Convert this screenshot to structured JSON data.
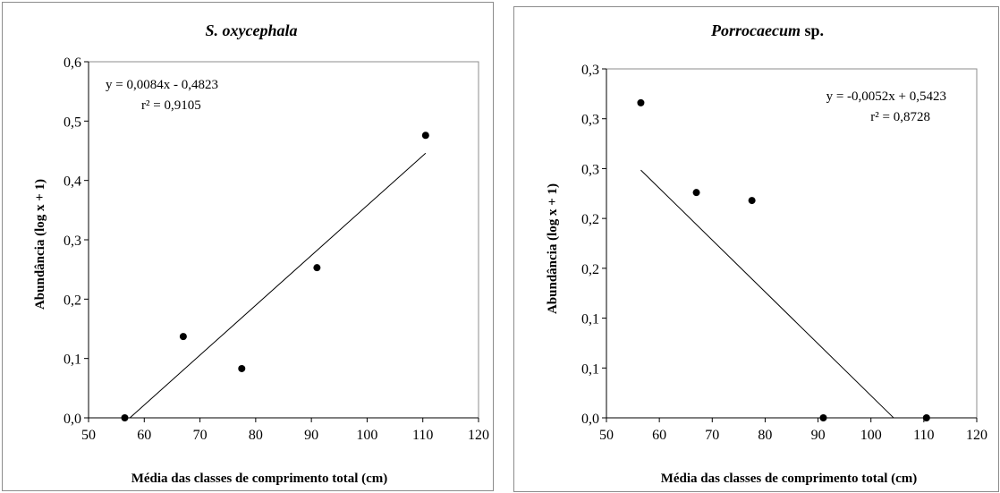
{
  "chart_data": [
    {
      "type": "scatter",
      "title": "S. oxycephala",
      "xlabel": "Média das classes de comprimento total (cm)",
      "ylabel": "Abundância (log x + 1)",
      "xlim": [
        50,
        120
      ],
      "ylim": [
        0,
        0.6
      ],
      "xticks": [
        50,
        60,
        70,
        80,
        90,
        100,
        110,
        120
      ],
      "xtick_labels": [
        "50",
        "60",
        "70",
        "80",
        "90",
        "100",
        "110",
        "120"
      ],
      "yticks": [
        0,
        0.1,
        0.2,
        0.3,
        0.4,
        0.5,
        0.6
      ],
      "ytick_labels": [
        "0,0",
        "0,1",
        "0,2",
        "0,3",
        "0,4",
        "0,5",
        "0,6"
      ],
      "grid": false,
      "x": [
        56.5,
        67,
        77.5,
        91,
        110.5
      ],
      "y": [
        0.0,
        0.137,
        0.083,
        0.253,
        0.476
      ],
      "trendline": {
        "slope": 0.0084,
        "intercept": -0.4823,
        "x_range": [
          57.4,
          110.5
        ]
      },
      "equation": "y = 0,0084x - 0,4823",
      "r2": "r² = 0,9105"
    },
    {
      "type": "scatter",
      "title": "Porrocaecum",
      "title_suffix": " sp.",
      "xlabel": "Média das classes de comprimento total (cm)",
      "ylabel": "Abundância (log x + 1)",
      "xlim": [
        50,
        120
      ],
      "ylim": [
        0,
        0.35
      ],
      "xticks": [
        50,
        60,
        70,
        80,
        90,
        100,
        110,
        120
      ],
      "xtick_labels": [
        "50",
        "60",
        "70",
        "80",
        "90",
        "100",
        "110",
        "120"
      ],
      "yticks": [
        0,
        0.05,
        0.1,
        0.15,
        0.2,
        0.25,
        0.3,
        0.35
      ],
      "ytick_labels": [
        "0,0",
        "0,1",
        "0,1",
        "0,2",
        "0,2",
        "0,3",
        "0,3",
        "0,3"
      ],
      "grid": false,
      "x": [
        56.5,
        67,
        77.5,
        91,
        110.5
      ],
      "y": [
        0.316,
        0.226,
        0.218,
        0.0,
        0.0
      ],
      "trendline": {
        "slope": -0.0052,
        "intercept": 0.5423,
        "x_range": [
          56.5,
          104.3
        ]
      },
      "equation": "y = -0,0052x + 0,5423",
      "r2": "r² = 0,8728"
    }
  ]
}
